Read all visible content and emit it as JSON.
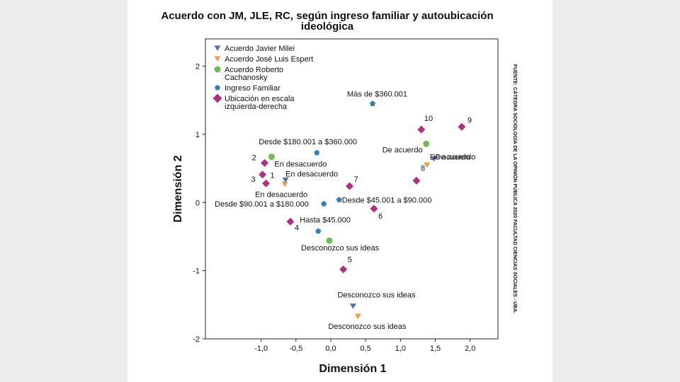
{
  "chart_data": {
    "type": "scatter",
    "title_lines": [
      "Acuerdo con JM, JLE, RC, según ingreso familiar y autoubicación",
      "ideológica"
    ],
    "xlabel": "Dimensión 1",
    "ylabel": "Dimensión 2",
    "xlim": [
      -1.8,
      2.4
    ],
    "ylim": [
      -2.0,
      2.4
    ],
    "xticks": [
      {
        "v": -1.0,
        "label": "-1,0"
      },
      {
        "v": -0.5,
        "label": "-0,5"
      },
      {
        "v": 0.0,
        "label": "0,0"
      },
      {
        "v": 0.5,
        "label": "0,5"
      },
      {
        "v": 1.0,
        "label": "1,0"
      },
      {
        "v": 1.5,
        "label": "1,5"
      },
      {
        "v": 2.0,
        "label": "2,0"
      }
    ],
    "yticks": [
      {
        "v": -2,
        "label": "-2"
      },
      {
        "v": -1,
        "label": "-1"
      },
      {
        "v": 0,
        "label": "0"
      },
      {
        "v": 1,
        "label": "1"
      },
      {
        "v": 2,
        "label": "2"
      }
    ],
    "source_note": "FUENTE: CÁTEDRA SOCIOLOGÍA DE LA OPINIÓN PÚBLICA 2020 FACULTAD CIENCIAS SOCIALES - UBA.",
    "series": [
      {
        "name": "Acuerdo Javier Milei",
        "legend_lines": [
          "Acuerdo Javier Milei"
        ],
        "marker": "triangle-down",
        "color": "#4f6fc0",
        "points": [
          {
            "x": -0.65,
            "y": 0.33,
            "label": "En desacuerdo"
          },
          {
            "x": 1.48,
            "y": 0.64,
            "label": "De acuerdo"
          },
          {
            "x": 0.32,
            "y": -1.52,
            "label": "Desconozco sus ideas"
          }
        ]
      },
      {
        "name": "Acuerdo José Luis Espert",
        "legend_lines": [
          "Acuerdo José Luis Espert"
        ],
        "marker": "triangle-down",
        "color": "#f39c3c",
        "points": [
          {
            "x": -0.66,
            "y": 0.27,
            "label": "En desacuerdo"
          },
          {
            "x": 1.38,
            "y": 0.55,
            "label": "De acuerdo"
          },
          {
            "x": 0.39,
            "y": -1.67,
            "label": "Desconozco sus ideas"
          }
        ]
      },
      {
        "name": "Acuerdo Roberto Cachanosky",
        "legend_lines": [
          "Acuerdo Roberto",
          "Cachanosky"
        ],
        "marker": "circle",
        "color": "#6cbf4e",
        "points": [
          {
            "x": -0.85,
            "y": 0.67,
            "label": "En desacuerdo"
          },
          {
            "x": 1.37,
            "y": 0.86,
            "label": "De acuerdo"
          },
          {
            "x": -0.02,
            "y": -0.56,
            "label": "Desconozco sus ideas"
          }
        ]
      },
      {
        "name": "Ingreso Familiar",
        "legend_lines": [
          "Ingreso Familiar"
        ],
        "marker": "pentagon",
        "color": "#2f7fbf",
        "points": [
          {
            "x": 0.6,
            "y": 1.45,
            "label": "Más de $360.001"
          },
          {
            "x": -0.2,
            "y": 0.73,
            "label": "Desde $180.001 a $360.000"
          },
          {
            "x": -0.1,
            "y": -0.02,
            "label": "Desde $90.001 a $180.000"
          },
          {
            "x": 0.12,
            "y": 0.04,
            "label": "Desde $45.001 a $90.000"
          },
          {
            "x": -0.18,
            "y": -0.42,
            "label": "Hasta  $45.000"
          }
        ]
      },
      {
        "name": "Ubicación en escala izquierda-derecha",
        "legend_lines": [
          "Ubicación en escala",
          "izquierda-derecha"
        ],
        "marker": "diamond",
        "color": "#b0307f",
        "points": [
          {
            "x": -0.93,
            "y": 0.28,
            "label": "1"
          },
          {
            "x": -0.95,
            "y": 0.58,
            "label": "2"
          },
          {
            "x": -0.98,
            "y": 0.41,
            "label": "3"
          },
          {
            "x": -0.58,
            "y": -0.28,
            "label": "4"
          },
          {
            "x": 0.18,
            "y": -0.98,
            "label": "5"
          },
          {
            "x": 0.62,
            "y": -0.09,
            "label": "6"
          },
          {
            "x": 0.27,
            "y": 0.24,
            "label": "7"
          },
          {
            "x": 1.23,
            "y": 0.32,
            "label": "8"
          },
          {
            "x": 1.88,
            "y": 1.11,
            "label": "9"
          },
          {
            "x": 1.3,
            "y": 1.07,
            "label": "10"
          }
        ]
      }
    ]
  }
}
